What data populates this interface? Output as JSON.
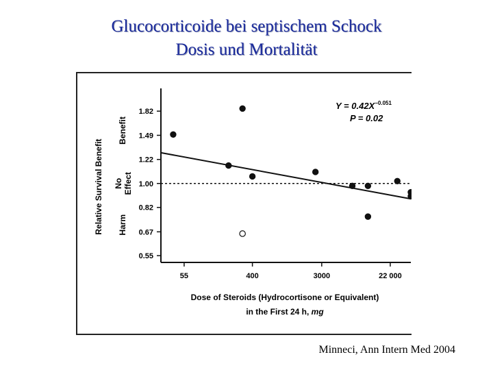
{
  "slide": {
    "title_line1": "Glucocorticoide bei septischem Schock",
    "title_line2": "Dosis und Mortalität",
    "citation": "Minneci, Ann Intern Med 2004"
  },
  "colors": {
    "title": "#1a2a9c",
    "marks": "#111111"
  },
  "chart_data": {
    "type": "scatter",
    "title": "",
    "xlabel_line1": "Dose of Steroids (Hydrocortisone or Equivalent)",
    "xlabel_line2_prefix": "in the First 24 h, ",
    "xlabel_line2_unit": "mg",
    "ylabel": "Relative Survival Benefit",
    "x_scale": "log",
    "xlim": [
      28,
      40000
    ],
    "ylim": [
      0.52,
      2.1
    ],
    "x_ticks": [
      55,
      400,
      3000,
      22000
    ],
    "x_tick_labels": [
      "55",
      "400",
      "3000",
      "22 000"
    ],
    "y_ticks": [
      0.55,
      0.67,
      0.82,
      1.0,
      1.22,
      1.49,
      1.82
    ],
    "y_tick_labels": [
      "0.55",
      "0.67",
      "0.82",
      "1.00",
      "1.22",
      "1.49",
      "1.82"
    ],
    "y_band_labels": [
      {
        "line1": "Benefit",
        "line2": "",
        "center_y": 1.55
      },
      {
        "line1": "No",
        "line2": "Effect",
        "center_y": 1.0
      },
      {
        "line1": "Harm",
        "line2": "",
        "center_y": 0.71
      }
    ],
    "reference_line_y": 1.0,
    "series": [
      {
        "name": "trials",
        "filled": true,
        "points": [
          {
            "x": 40,
            "y": 1.5
          },
          {
            "x": 200,
            "y": 1.16
          },
          {
            "x": 300,
            "y": 1.86
          },
          {
            "x": 400,
            "y": 1.06
          },
          {
            "x": 2500,
            "y": 1.1
          },
          {
            "x": 7300,
            "y": 0.98
          },
          {
            "x": 11500,
            "y": 0.98
          },
          {
            "x": 11500,
            "y": 0.76
          },
          {
            "x": 27000,
            "y": 1.02
          },
          {
            "x": 40000,
            "y": 0.93
          },
          {
            "x": 40000,
            "y": 0.9
          }
        ]
      },
      {
        "name": "open",
        "filled": false,
        "points": [
          {
            "x": 300,
            "y": 0.66
          }
        ]
      }
    ],
    "fit": {
      "label_prefix": "Y = 0.42X",
      "label_exponent": "−0.051",
      "p_label": "P = 0.02",
      "y_at_x_start": 1.29,
      "y_at_x_end": 0.88
    }
  }
}
